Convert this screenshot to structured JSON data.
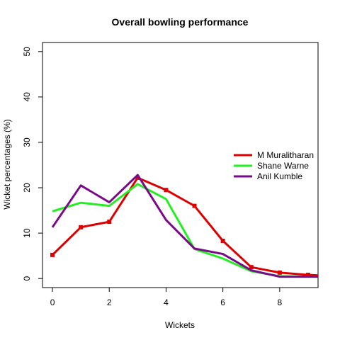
{
  "chart_data": {
    "type": "line",
    "title": "Overall bowling performance",
    "xlabel": "Wickets",
    "ylabel": "Wicket percentages (%)",
    "xlim": [
      -0.35,
      9.35
    ],
    "ylim": [
      -2,
      52
    ],
    "x_ticks": [
      0,
      2,
      4,
      6,
      8
    ],
    "y_ticks": [
      0,
      10,
      20,
      30,
      40,
      50
    ],
    "x": [
      0,
      1,
      2,
      3,
      4,
      5,
      6,
      7,
      8,
      9,
      10
    ],
    "legend_position": "right",
    "grid": false,
    "series": [
      {
        "name": "M Muralitharan",
        "color": "#dd0000",
        "markers": true,
        "values": [
          5.2,
          11.3,
          12.5,
          22.2,
          19.5,
          16.0,
          8.3,
          2.5,
          1.3,
          0.8,
          0.5
        ]
      },
      {
        "name": "Shane Warne",
        "color": "#22ee22",
        "markers": false,
        "values": [
          14.8,
          16.7,
          16.0,
          20.8,
          17.5,
          6.5,
          4.4,
          1.6,
          0.5,
          0.4,
          0.4
        ]
      },
      {
        "name": "Anil Kumble",
        "color": "#7a0a8a",
        "markers": false,
        "values": [
          11.3,
          20.5,
          16.8,
          22.8,
          12.9,
          6.6,
          5.4,
          1.8,
          0.4,
          0.4,
          0.4
        ]
      }
    ]
  }
}
